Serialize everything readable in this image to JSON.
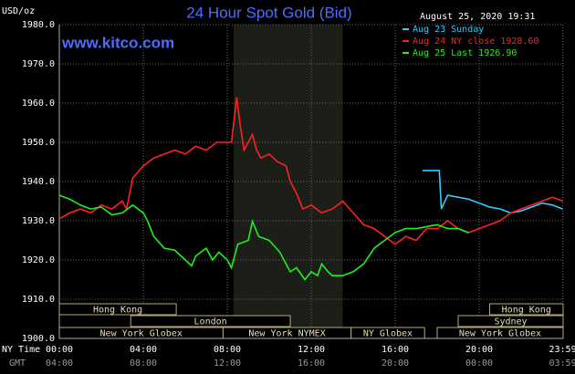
{
  "chart_data": {
    "type": "line",
    "title": "24 Hour Spot Gold (Bid)",
    "subtitle": "www.kitco.com",
    "timestamp": "August 25, 2020 19:31",
    "y_label": "USD/oz",
    "x_label": "NY Time",
    "x2_label": "GMT",
    "xlim": [
      0,
      24
    ],
    "xticks": [
      {
        "value": 0,
        "label": "00:00"
      },
      {
        "value": 4,
        "label": "04:00"
      },
      {
        "value": 8,
        "label": "08:00"
      },
      {
        "value": 12,
        "label": "12:00"
      },
      {
        "value": 16,
        "label": "16:00"
      },
      {
        "value": 20,
        "label": "20:00"
      },
      {
        "value": 23.98,
        "label": "23:59"
      }
    ],
    "x2tick_labels": [
      "04:00",
      "08:00",
      "12:00",
      "16:00",
      "20:00",
      "00:00",
      "03:59"
    ],
    "ylim": [
      1900,
      1980
    ],
    "yticks": [
      {
        "value": 1900,
        "label": "1900.0"
      },
      {
        "value": 1910,
        "label": "1910.0"
      },
      {
        "value": 1920,
        "label": "1920.0"
      },
      {
        "value": 1930,
        "label": "1930.0"
      },
      {
        "value": 1940,
        "label": "1940.0"
      },
      {
        "value": 1950,
        "label": "1950.0"
      },
      {
        "value": 1960,
        "label": "1960.0"
      },
      {
        "value": 1970,
        "label": "1970.0"
      },
      {
        "value": 1980,
        "label": "1980.0"
      }
    ],
    "grid": true,
    "shaded_range": [
      8.3,
      13.5
    ],
    "sessions": [
      [
        {
          "label": "Hong Kong",
          "start": 0,
          "end": 5.57
        },
        {
          "label": "Hong Kong",
          "start": 20.5,
          "end": 24
        }
      ],
      [
        {
          "label": "London",
          "start": 3.4,
          "end": 11
        },
        {
          "label": "Sydney",
          "start": 19,
          "end": 24
        }
      ],
      [
        {
          "label": "New York Globex",
          "start": 0,
          "end": 7.8
        },
        {
          "label": "New York NYMEX",
          "start": 7.8,
          "end": 13.9
        },
        {
          "label": "NY Globex",
          "start": 13.9,
          "end": 17.4
        },
        {
          "label": "New York Globex",
          "start": 18,
          "end": 24
        }
      ]
    ],
    "series": [
      {
        "name": "Aug 23 Sunday",
        "color": "#33ccff",
        "x": [
          17.3,
          18.1,
          18.2,
          18.5,
          19,
          19.5,
          20,
          20.5,
          21,
          21.5,
          22,
          22.5,
          23,
          23.5,
          23.98
        ],
        "values": [
          1942.8,
          1942.8,
          1933,
          1936.5,
          1936,
          1935.5,
          1934.5,
          1933.5,
          1933,
          1932,
          1932.5,
          1933.5,
          1934.5,
          1934,
          1933
        ]
      },
      {
        "name": "Aug 24 NY close 1928.60",
        "color": "#ff2020",
        "x": [
          0,
          0.5,
          1,
          1.5,
          2,
          2.5,
          3,
          3.2,
          3.5,
          4,
          4.5,
          5,
          5.5,
          6,
          6.5,
          7,
          7.5,
          8,
          8.2,
          8.45,
          8.6,
          8.8,
          9,
          9.2,
          9.4,
          9.6,
          10,
          10.4,
          10.8,
          11,
          11.3,
          11.6,
          12,
          12.5,
          13,
          13.5,
          14,
          14.5,
          15,
          15.5,
          16,
          16.5,
          17,
          17.5,
          18,
          18.5,
          19,
          19.5,
          20,
          20.5,
          21,
          21.5,
          22,
          22.5,
          23,
          23.5,
          23.98
        ],
        "values": [
          1930.5,
          1932,
          1933,
          1932,
          1934,
          1933,
          1935,
          1933,
          1940.9,
          1944,
          1946,
          1947,
          1948,
          1947,
          1949,
          1948,
          1950,
          1950,
          1950,
          1961.4,
          1955,
          1948,
          1950,
          1952,
          1948,
          1946,
          1947,
          1945,
          1944,
          1940,
          1937,
          1933,
          1934,
          1932,
          1933,
          1935,
          1932,
          1929,
          1928,
          1926,
          1924,
          1926,
          1925,
          1928,
          1928,
          1930,
          1928,
          1927,
          1928,
          1929,
          1930,
          1932,
          1933,
          1934,
          1935,
          1936,
          1935
        ]
      },
      {
        "name": "Aug 25 Last 1926.90",
        "color": "#22ee22",
        "x": [
          0,
          0.5,
          1,
          1.5,
          2,
          2.5,
          3,
          3.5,
          4,
          4.2,
          4.5,
          5,
          5.5,
          6,
          6.3,
          6.5,
          7,
          7.3,
          7.6,
          8,
          8.2,
          8.5,
          9,
          9.2,
          9.5,
          10,
          10.5,
          11,
          11.3,
          11.7,
          12,
          12.3,
          12.5,
          12.8,
          13,
          13.5,
          14,
          14.5,
          15,
          15.5,
          16,
          16.5,
          17,
          17.5,
          18,
          18.5,
          19,
          19.52
        ],
        "values": [
          1936.5,
          1935.5,
          1934,
          1933,
          1933.5,
          1931.5,
          1932,
          1934,
          1932,
          1930,
          1926,
          1923,
          1922.5,
          1920,
          1918.5,
          1921,
          1923,
          1920,
          1922,
          1920,
          1918,
          1924,
          1925,
          1929.8,
          1926,
          1925,
          1922,
          1917,
          1918,
          1915,
          1917,
          1916,
          1919,
          1917,
          1916,
          1916,
          1917,
          1919,
          1923,
          1925,
          1927,
          1928,
          1928,
          1928.5,
          1929,
          1928,
          1928,
          1926.9
        ]
      }
    ]
  }
}
